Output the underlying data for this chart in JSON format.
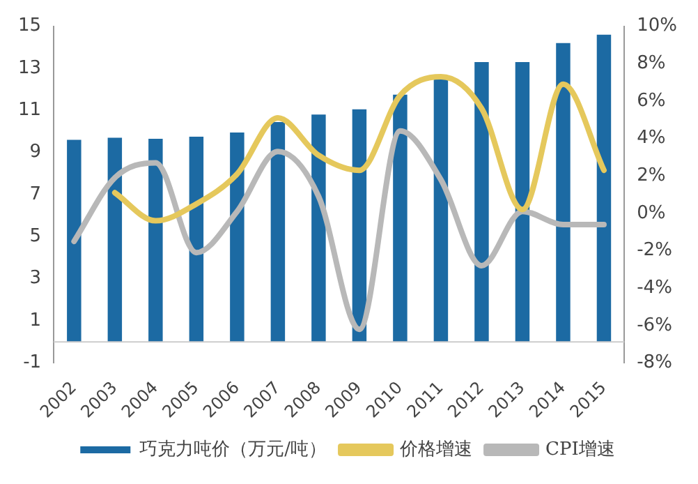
{
  "chart_data": {
    "type": "bar",
    "categories": [
      "2002",
      "2003",
      "2004",
      "2005",
      "2006",
      "2007",
      "2008",
      "2009",
      "2010",
      "2011",
      "2012",
      "2013",
      "2014",
      "2015"
    ],
    "series": [
      {
        "name": "巧克力吨价（万元/吨）",
        "color": "#1c6aa3",
        "values": [
          9.6,
          9.7,
          9.65,
          9.75,
          9.95,
          10.45,
          10.8,
          11.05,
          11.75,
          12.5,
          13.3,
          13.3,
          14.2,
          14.6
        ]
      },
      {
        "name": "价格增速",
        "type": "line",
        "axis": "y2",
        "color": "#e5c85c",
        "values": [
          null,
          1.1,
          -0.4,
          0.5,
          2.1,
          5.1,
          3.1,
          2.3,
          6.3,
          7.3,
          5.6,
          0.2,
          6.9,
          2.3
        ]
      },
      {
        "name": "CPI增速",
        "type": "line",
        "axis": "y2",
        "color": "#b8b8b8",
        "values": [
          -1.5,
          1.9,
          2.7,
          -2.1,
          0.1,
          3.3,
          0.9,
          -6.2,
          4.4,
          1.8,
          -2.8,
          0.1,
          -0.6,
          -0.6
        ]
      }
    ],
    "ylim": [
      -1,
      15
    ],
    "yticks": [
      -1,
      1,
      3,
      5,
      7,
      9,
      11,
      13,
      15
    ],
    "y2lim": [
      -8,
      10
    ],
    "y2ticks": [
      {
        "value": -8,
        "label": "-8%"
      },
      {
        "value": -6,
        "label": "-6%"
      },
      {
        "value": -4,
        "label": "-4%"
      },
      {
        "value": -2,
        "label": "-2%"
      },
      {
        "value": 0,
        "label": "0%"
      },
      {
        "value": 2,
        "label": "2%"
      },
      {
        "value": 4,
        "label": "4%"
      },
      {
        "value": 6,
        "label": "6%"
      },
      {
        "value": 8,
        "label": "8%"
      },
      {
        "value": 10,
        "label": "10%"
      }
    ],
    "grid": false,
    "legend": "bottom",
    "marker": "none"
  }
}
